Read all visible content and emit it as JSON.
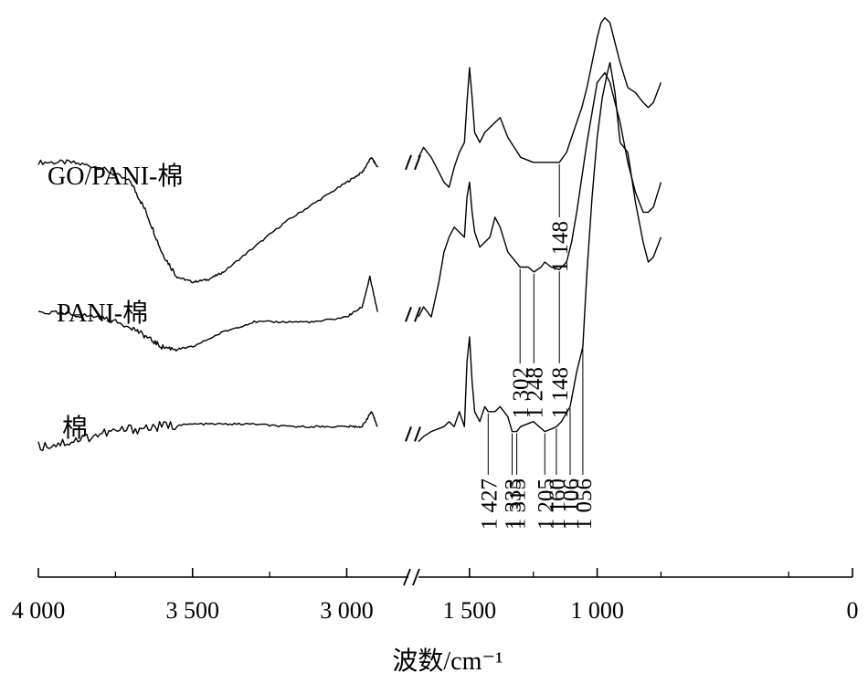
{
  "chart_data": {
    "type": "line",
    "xlabel": "波数/cm⁻¹",
    "ylabel": "",
    "x_axis": {
      "reversed": true,
      "broken": true,
      "break_between": [
        2800,
        1700
      ],
      "segment_left_range": [
        4000,
        2800
      ],
      "segment_right_range": [
        1700,
        0
      ],
      "ticks": [
        {
          "value": 4000,
          "label": "4 000"
        },
        {
          "value": 3500,
          "label": "3 500"
        },
        {
          "value": 3000,
          "label": "3 000"
        },
        {
          "value": 1500,
          "label": "1 500"
        },
        {
          "value": 1000,
          "label": "1 000"
        },
        {
          "value": 0,
          "label": "0"
        }
      ]
    },
    "y_axis": {
      "visible": false,
      "units": "offset transmittance (arb.)",
      "ylim": [
        0,
        100
      ]
    },
    "series": [
      {
        "name": "GO/PANI-棉",
        "x_left": [
          4000,
          3900,
          3800,
          3700,
          3650,
          3600,
          3550,
          3500,
          3450,
          3400,
          3300,
          3200,
          3100,
          3000,
          2950,
          2920,
          2900
        ],
        "y_left": [
          70,
          70,
          69,
          66,
          60,
          52,
          47,
          46,
          46.5,
          48,
          53,
          58,
          62,
          66,
          68,
          71,
          69
        ],
        "x_right": [
          1700,
          1680,
          1650,
          1620,
          1600,
          1580,
          1560,
          1540,
          1520,
          1510,
          1500,
          1490,
          1480,
          1460,
          1440,
          1420,
          1400,
          1380,
          1350,
          1300,
          1250,
          1200,
          1148,
          1120,
          1100,
          1080,
          1060,
          1040,
          1020,
          1000,
          985,
          970,
          950,
          930,
          910,
          880,
          850,
          820,
          800,
          780,
          750
        ],
        "y_right": [
          71,
          73,
          71,
          68,
          66,
          65,
          69,
          72,
          74,
          82,
          89,
          83,
          76,
          74,
          76,
          77,
          78,
          79,
          75,
          71,
          70,
          70,
          70,
          72,
          75,
          78,
          81,
          85,
          90,
          95,
          98,
          99,
          98,
          94,
          90,
          85,
          84,
          82,
          81,
          82,
          86
        ]
      },
      {
        "name": "PANI-棉",
        "x_left": [
          4000,
          3900,
          3800,
          3700,
          3650,
          3600,
          3550,
          3500,
          3400,
          3300,
          3200,
          3100,
          3000,
          2950,
          2925,
          2900
        ],
        "y_left": [
          40,
          39.5,
          39,
          37,
          35,
          33,
          32.5,
          33,
          36,
          38,
          38,
          38,
          39,
          41,
          47,
          40
        ],
        "x_right": [
          1700,
          1680,
          1650,
          1620,
          1600,
          1580,
          1560,
          1540,
          1520,
          1510,
          1500,
          1490,
          1480,
          1460,
          1440,
          1420,
          1400,
          1380,
          1350,
          1302,
          1270,
          1248,
          1220,
          1205,
          1180,
          1148,
          1120,
          1100,
          1080,
          1060,
          1040,
          1020,
          1000,
          985,
          970,
          950,
          930,
          910,
          880,
          850,
          820,
          800,
          780,
          750
        ],
        "y_right": [
          39,
          41,
          39,
          46,
          52,
          55,
          57,
          56,
          55,
          63,
          66,
          60,
          56,
          53,
          54,
          55,
          59,
          57,
          52,
          49,
          49,
          48,
          49,
          50,
          49,
          48.5,
          50,
          54,
          60,
          67,
          74,
          80,
          86,
          87,
          88,
          86,
          82,
          78,
          70,
          64,
          60,
          60,
          61,
          66
        ]
      },
      {
        "name": "棉",
        "x_left": [
          4000,
          3900,
          3800,
          3700,
          3600,
          3500,
          3400,
          3300,
          3200,
          3100,
          3000,
          2950,
          2920,
          2900
        ],
        "y_left": [
          13,
          14,
          15.5,
          16.5,
          17,
          17.5,
          17.5,
          17.5,
          17,
          17,
          17,
          17,
          20,
          17
        ],
        "x_right": [
          1700,
          1680,
          1650,
          1600,
          1580,
          1560,
          1540,
          1520,
          1510,
          1500,
          1490,
          1480,
          1460,
          1440,
          1427,
          1400,
          1380,
          1350,
          1333,
          1315,
          1300,
          1250,
          1205,
          1180,
          1160,
          1140,
          1106,
          1080,
          1056,
          1040,
          1020,
          1000,
          980,
          960,
          950,
          930,
          910,
          880,
          850,
          820,
          800,
          780,
          750
        ],
        "y_right": [
          14,
          15,
          16,
          17,
          18,
          17,
          20,
          17,
          30,
          35,
          26,
          20,
          18,
          21,
          20,
          20,
          21,
          19,
          16,
          16,
          17,
          18,
          16,
          16.5,
          17,
          18,
          21,
          28,
          33,
          48,
          63,
          75,
          83,
          88,
          90,
          84,
          74,
          72,
          62,
          54,
          50,
          51,
          55
        ]
      }
    ],
    "annotations": [
      {
        "series": "GO/PANI-棉",
        "x": 1148,
        "label": "1 148"
      },
      {
        "series": "PANI-棉",
        "x": 1302,
        "label": "1 302"
      },
      {
        "series": "PANI-棉",
        "x": 1248,
        "label": "1 248"
      },
      {
        "series": "PANI-棉",
        "x": 1148,
        "label": "1 148"
      },
      {
        "series": "棉",
        "x": 1427,
        "label": "1 427"
      },
      {
        "series": "棉",
        "x": 1333,
        "label": "1 333"
      },
      {
        "series": "棉",
        "x": 1315,
        "label": "1 315"
      },
      {
        "series": "棉",
        "x": 1205,
        "label": "1 205"
      },
      {
        "series": "棉",
        "x": 1160,
        "label": "1 160"
      },
      {
        "series": "棉",
        "x": 1106,
        "label": "1 106"
      },
      {
        "series": "棉",
        "x": 1056,
        "label": "1 056"
      }
    ]
  }
}
